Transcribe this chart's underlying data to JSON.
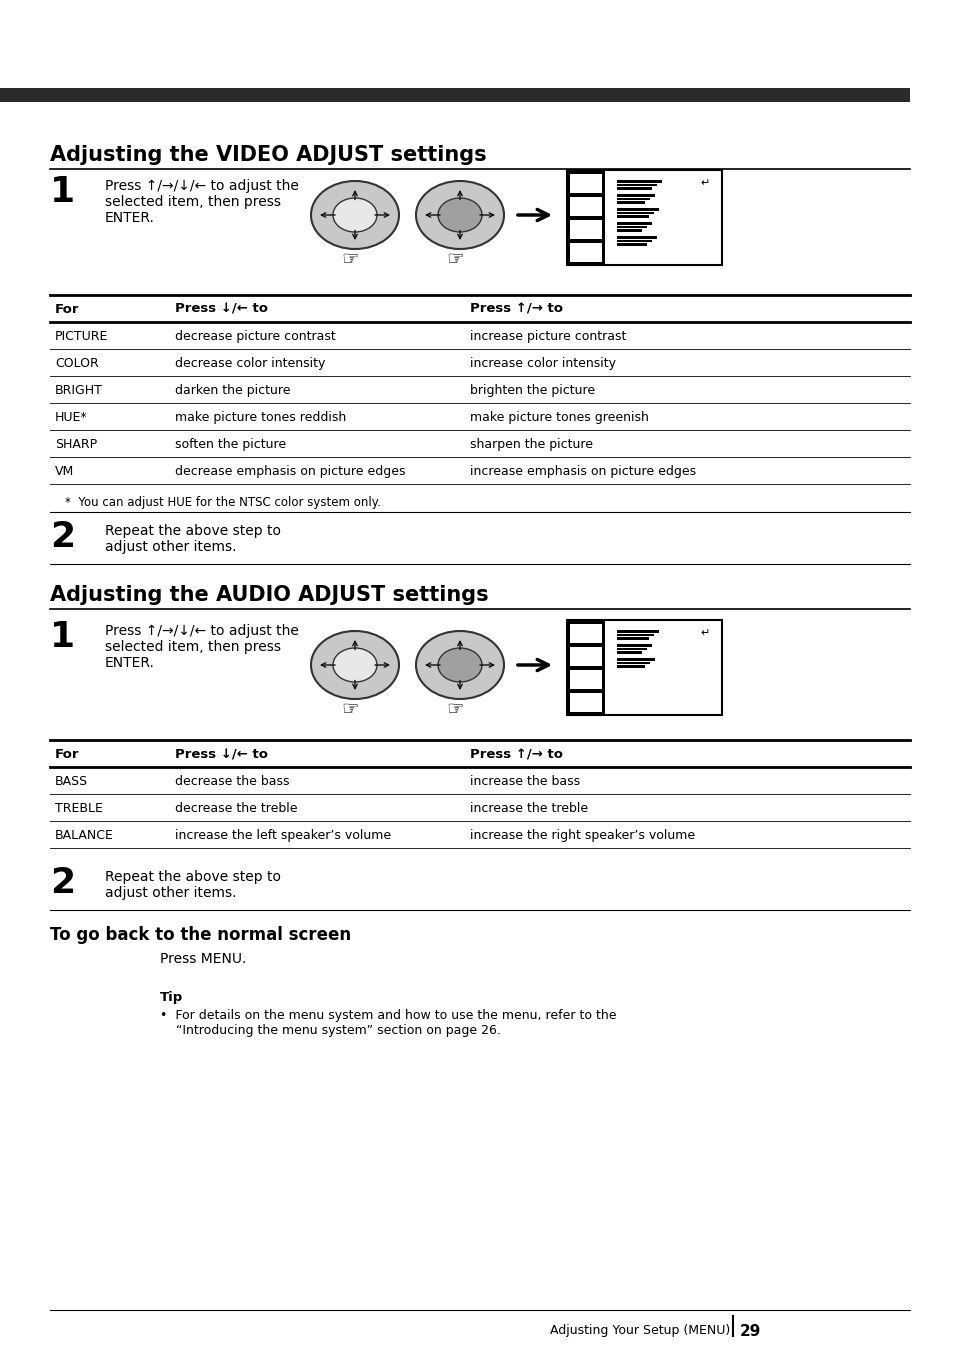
{
  "bg_color": "#ffffff",
  "top_bar_color": "#2a2a2a",
  "title1": "Adjusting the VIDEO ADJUST settings",
  "title2": "Adjusting the AUDIO ADJUST settings",
  "title3": "To go back to the normal screen",
  "step1_text": "Press ↑/→/↓/← to adjust the\nselected item, then press\nENTER.",
  "step2_text": "Repeat the above step to\nadjust other items.",
  "video_table_rows": [
    [
      "PICTURE",
      "decrease picture contrast",
      "increase picture contrast"
    ],
    [
      "COLOR",
      "decrease color intensity",
      "increase color intensity"
    ],
    [
      "BRIGHT",
      "darken the picture",
      "brighten the picture"
    ],
    [
      "HUE*",
      "make picture tones reddish",
      "make picture tones greenish"
    ],
    [
      "SHARP",
      "soften the picture",
      "sharpen the picture"
    ],
    [
      "VM",
      "decrease emphasis on picture edges",
      "increase emphasis on picture edges"
    ]
  ],
  "video_footnote": "*  You can adjust HUE for the NTSC color system only.",
  "audio_table_rows": [
    [
      "BASS",
      "decrease the bass",
      "increase the bass"
    ],
    [
      "TREBLE",
      "decrease the treble",
      "increase the treble"
    ],
    [
      "BALANCE",
      "increase the left speaker’s volume",
      "increase the right speaker’s volume"
    ]
  ],
  "normal_screen_text": "Press MENU.",
  "tip_title": "Tip",
  "tip_text": "•  For details on the menu system and how to use the menu, refer to the\n    “Introducing the menu system” section on page 26.",
  "footer_text": "Adjusting Your Setup (MENU)",
  "footer_page": "29"
}
